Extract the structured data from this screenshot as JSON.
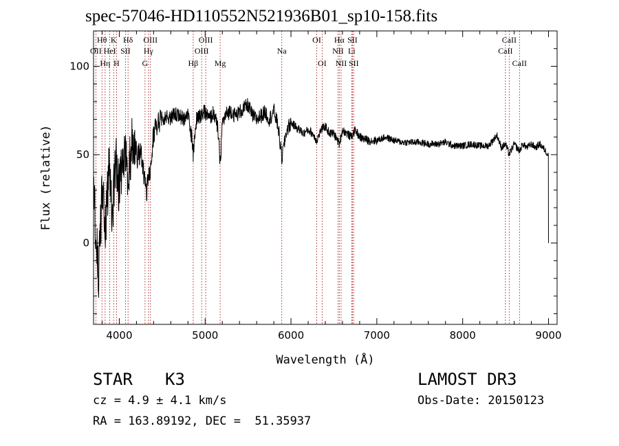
{
  "header": {
    "title": "spec-57046-HD110552N521936B01_sp10-158.fits"
  },
  "info": {
    "object_type": "STAR",
    "spectral_class": "K3",
    "survey": "LAMOST DR3",
    "cz_text": "cz = 4.9 ± 4.1 km/s",
    "obs_date_text": "Obs-Date: 20150123",
    "coords_text": "RA = 163.89192, DEC =  51.35937"
  },
  "colors": {
    "axes": "#000000",
    "spectrum": "#000000",
    "line_markers": "#b03030"
  },
  "chart_data": {
    "type": "line",
    "title": "spec-57046-HD110552N521936B01_sp10-158.fits",
    "xlabel": "Wavelength (Å)",
    "ylabel": "Flux (relative)",
    "xlim": [
      3700,
      9100
    ],
    "ylim": [
      -46,
      120
    ],
    "xticks": [
      4000,
      5000,
      6000,
      7000,
      8000,
      9000
    ],
    "xtick_labels": [
      "4000",
      "5000",
      "6000",
      "7000",
      "8000",
      "9000"
    ],
    "yticks": [
      0,
      50,
      100
    ],
    "ytick_labels": [
      "0",
      "50",
      "100"
    ],
    "series": [
      {
        "name": "spectrum",
        "x": [
          3700,
          3760,
          3800,
          3840,
          3880,
          3920,
          3960,
          4000,
          4050,
          4100,
          4150,
          4200,
          4250,
          4300,
          4320,
          4360,
          4400,
          4450,
          4500,
          4550,
          4600,
          4650,
          4700,
          4750,
          4800,
          4850,
          4861,
          4900,
          4950,
          5000,
          5050,
          5100,
          5150,
          5175,
          5200,
          5250,
          5300,
          5350,
          5400,
          5450,
          5500,
          5550,
          5600,
          5650,
          5700,
          5750,
          5800,
          5850,
          5893,
          5950,
          6000,
          6050,
          6100,
          6150,
          6200,
          6250,
          6300,
          6350,
          6400,
          6450,
          6500,
          6563,
          6600,
          6650,
          6700,
          6750,
          6800,
          6900,
          7000,
          7100,
          7200,
          7300,
          7400,
          7500,
          7600,
          7700,
          7800,
          7900,
          8000,
          8100,
          8200,
          8300,
          8400,
          8450,
          8500,
          8542,
          8600,
          8662,
          8700,
          8750,
          8800,
          8850,
          8900,
          8950,
          9000
        ],
        "values": [
          28,
          -20,
          30,
          12,
          42,
          18,
          48,
          30,
          52,
          40,
          58,
          48,
          52,
          34,
          30,
          42,
          62,
          68,
          70,
          72,
          70,
          74,
          72,
          70,
          73,
          58,
          50,
          70,
          72,
          74,
          70,
          74,
          64,
          44,
          68,
          73,
          75,
          72,
          74,
          76,
          78,
          72,
          70,
          72,
          74,
          70,
          75,
          66,
          48,
          64,
          68,
          66,
          64,
          62,
          64,
          62,
          58,
          64,
          66,
          62,
          62,
          56,
          64,
          62,
          60,
          64,
          60,
          58,
          58,
          60,
          58,
          57,
          57,
          57,
          56,
          56,
          57,
          55,
          55,
          56,
          55,
          55,
          61,
          54,
          56,
          50,
          56,
          52,
          56,
          54,
          56,
          54,
          56,
          53,
          50
        ]
      }
    ],
    "line_markers": [
      {
        "name": "OII",
        "wavelength": 3727,
        "row": 2
      },
      {
        "name": "Hθ",
        "wavelength": 3798,
        "row": 1
      },
      {
        "name": "Hη",
        "wavelength": 3835,
        "row": 3
      },
      {
        "name": "HeI",
        "wavelength": 3889,
        "row": 2
      },
      {
        "name": "K",
        "wavelength": 3934,
        "row": 1
      },
      {
        "name": "H",
        "wavelength": 3968,
        "row": 3
      },
      {
        "name": "SII",
        "wavelength": 4072,
        "row": 2
      },
      {
        "name": "Hδ",
        "wavelength": 4102,
        "row": 1
      },
      {
        "name": "G",
        "wavelength": 4300,
        "row": 3
      },
      {
        "name": "Hγ",
        "wavelength": 4340,
        "row": 2
      },
      {
        "name": "OIII",
        "wavelength": 4363,
        "row": 1
      },
      {
        "name": "Hβ",
        "wavelength": 4861,
        "row": 3
      },
      {
        "name": "OIII",
        "wavelength": 4959,
        "row": 2
      },
      {
        "name": "OIII",
        "wavelength": 5007,
        "row": 1
      },
      {
        "name": "Mg",
        "wavelength": 5175,
        "row": 3
      },
      {
        "name": "Na",
        "wavelength": 5893,
        "row": 2
      },
      {
        "name": "OI",
        "wavelength": 6300,
        "row": 1
      },
      {
        "name": "OI",
        "wavelength": 6363,
        "row": 3
      },
      {
        "name": "NII",
        "wavelength": 6548,
        "row": 2
      },
      {
        "name": "Hα",
        "wavelength": 6563,
        "row": 1
      },
      {
        "name": "NII",
        "wavelength": 6584,
        "row": 3
      },
      {
        "name": "Li",
        "wavelength": 6707,
        "row": 2
      },
      {
        "name": "SII",
        "wavelength": 6716,
        "row": 1
      },
      {
        "name": "SII",
        "wavelength": 6731,
        "row": 3
      },
      {
        "name": "CaII",
        "wavelength": 8498,
        "row": 2
      },
      {
        "name": "CaII",
        "wavelength": 8542,
        "row": 1
      },
      {
        "name": "CaII",
        "wavelength": 8662,
        "row": 3
      }
    ]
  }
}
